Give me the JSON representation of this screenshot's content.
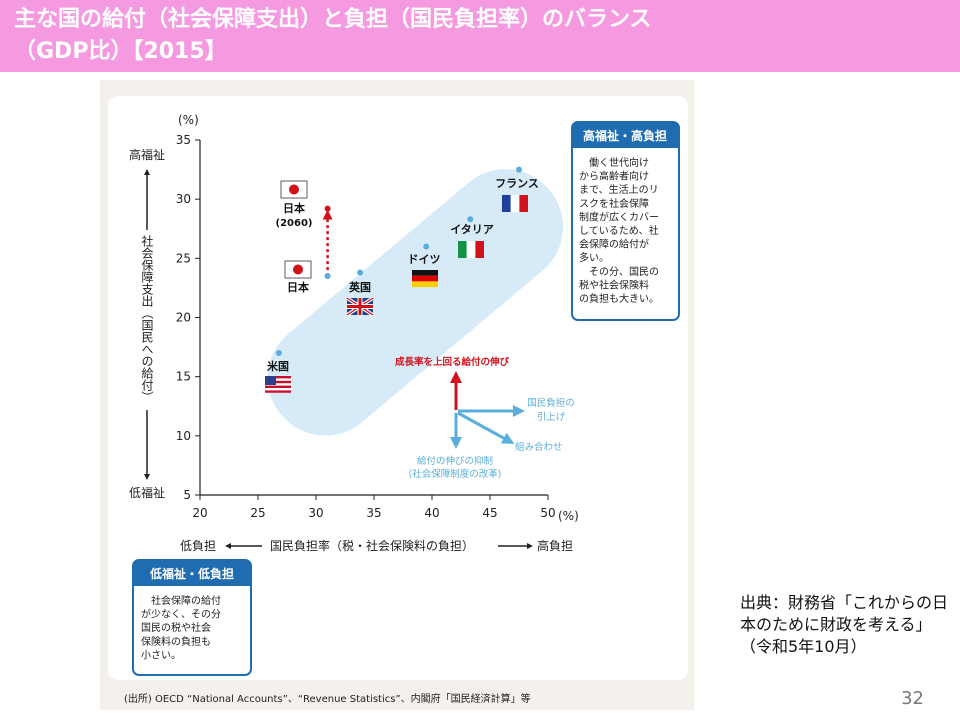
{
  "slide": {
    "title_line1": "主な国の給付（社会保障支出）と負担（国民負担率）のバランス",
    "title_line2": "（GDP比）【2015】",
    "source_note": "出典：財務省「これからの日本のために財政を考える」（令和5年10月）",
    "page_number": "32",
    "colors": {
      "title_bar": "#f59ae0",
      "ellipse": "#d6ebf7",
      "point": "#5aaedc",
      "box_border": "#1f6cb0",
      "red": "#d2121a",
      "arrow_blue": "#5aaedc"
    }
  },
  "chart_data": {
    "type": "scatter",
    "xlabel": "国民負担率（税・社会保険料の負担）",
    "xlabel_left": "低負担",
    "xlabel_right": "高負担",
    "x_unit": "(%)",
    "xlim": [
      20,
      50
    ],
    "x_ticks": [
      "20",
      "25",
      "30",
      "35",
      "40",
      "45",
      "50"
    ],
    "ylabel": "社会保障支出（国民への給付）",
    "ylabel_top": "高福祉",
    "ylabel_bottom": "低福祉",
    "y_unit": "(%)",
    "ylim": [
      5,
      35
    ],
    "y_ticks": [
      "5",
      "10",
      "15",
      "20",
      "25",
      "30",
      "35"
    ],
    "points": [
      {
        "name": "米国",
        "x": 26.8,
        "y": 17.0
      },
      {
        "name": "英国",
        "x": 33.8,
        "y": 23.8
      },
      {
        "name": "日本",
        "x": 31.0,
        "y": 23.5
      },
      {
        "name": "ドイツ",
        "x": 39.5,
        "y": 26.0
      },
      {
        "name": "イタリア",
        "x": 43.3,
        "y": 28.3
      },
      {
        "name": "フランス",
        "x": 47.5,
        "y": 32.5
      }
    ],
    "projection": {
      "name": "日本(2060)",
      "label_line1": "日本",
      "label_line2": "(2060)",
      "x_from": 31.0,
      "y_from": 23.5,
      "x_to": 31.0,
      "y_to": 29.2
    },
    "legend_arrows": {
      "up": "成長率を上回る給付の伸び",
      "right_line1": "国民負担の",
      "right_line2": "引上げ",
      "diagonal": "組み合わせ",
      "down_line1": "給付の伸びの抑制",
      "down_line2": "(社会保障制度の改革)"
    },
    "box_high": {
      "title": "高福祉・高負担",
      "lines": [
        "　働く世代向け",
        "から高齢者向け",
        "まで、生活上のリ",
        "スクを社会保障",
        "制度が広くカバー",
        "しているため、社",
        "会保障の給付が",
        "多い。",
        "　その分、国民の",
        "税や社会保険料",
        "の負担も大きい。"
      ]
    },
    "box_low": {
      "title": "低福祉・低負担",
      "lines": [
        "　社会保障の給付",
        "が少なく、その分",
        "国民の税や社会",
        "保険料の負担も",
        "小さい。"
      ]
    },
    "footnote": "(出所) OECD “National Accounts”、“Revenue Statistics”、内閣府「国民経済計算」等",
    "grid": false
  }
}
